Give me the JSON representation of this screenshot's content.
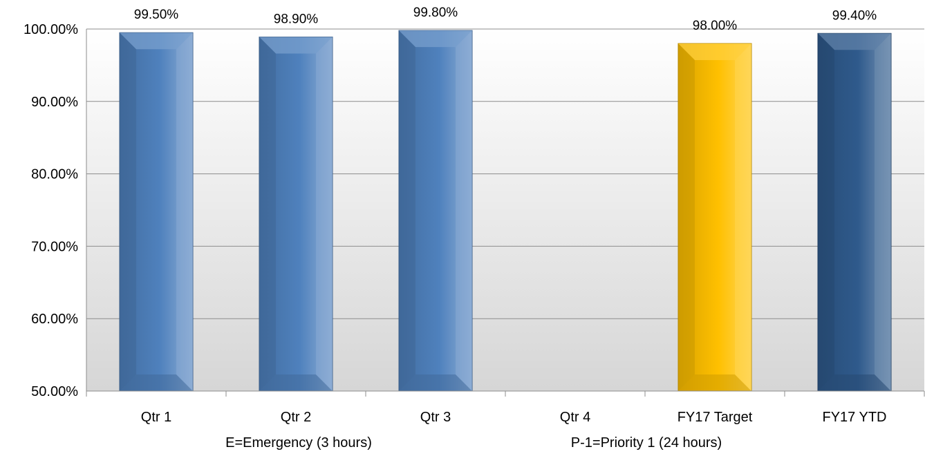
{
  "chart_data": {
    "type": "bar",
    "categories": [
      "Qtr 1",
      "Qtr 2",
      "Qtr 3",
      "Qtr 4",
      "FY17 Target",
      "FY17 YTD"
    ],
    "values": [
      99.5,
      98.9,
      99.8,
      null,
      98.0,
      99.4
    ],
    "data_labels": [
      "99.50%",
      "98.90%",
      "99.80%",
      "",
      "98.00%",
      "99.40%"
    ],
    "ylim": [
      50,
      100
    ],
    "yticks": [
      50,
      60,
      70,
      80,
      90,
      100
    ],
    "ytick_labels": [
      "50.00%",
      "60.00%",
      "70.00%",
      "80.00%",
      "90.00%",
      "100.00%"
    ],
    "bar_styles": [
      "quarter",
      "quarter",
      "quarter",
      "quarter",
      "target",
      "ytd"
    ],
    "colors": {
      "quarter": "#4f81bd",
      "target": "#ffc000",
      "ytd": "#2f5a8c",
      "gridline": "#8c8c8c",
      "plot_bg_top": "#ffffff",
      "plot_bg_bottom": "#d6d6d6"
    },
    "grid": true,
    "legend": "none",
    "footnotes": [
      "E=Emergency (3 hours)",
      "P-1=Priority 1 (24 hours)"
    ]
  }
}
